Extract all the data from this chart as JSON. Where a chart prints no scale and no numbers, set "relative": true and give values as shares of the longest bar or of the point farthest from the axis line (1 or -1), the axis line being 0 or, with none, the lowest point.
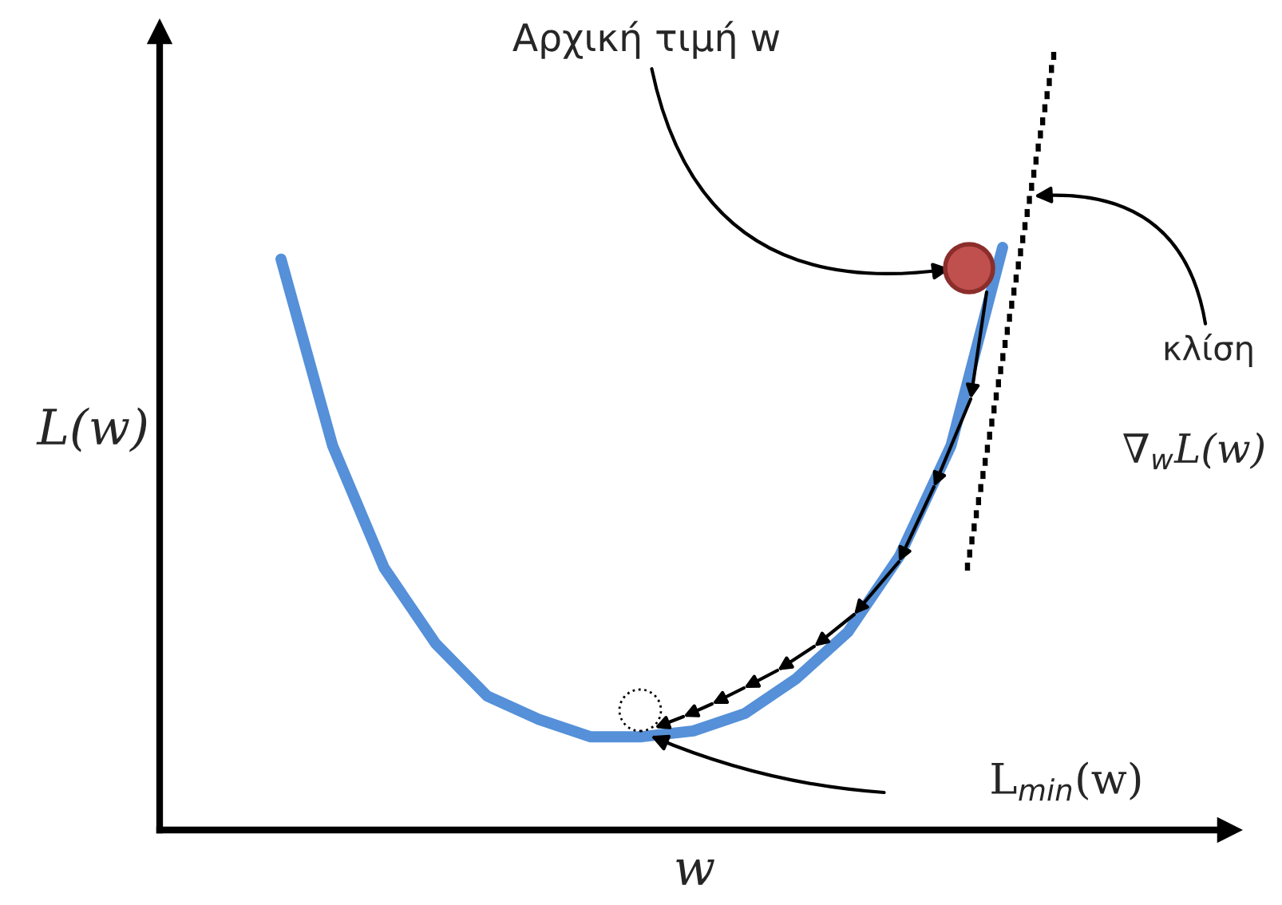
{
  "chart_data": {
    "type": "line",
    "relative": true,
    "xlabel": "w",
    "ylabel": "L(w)",
    "categories": [
      null,
      null,
      null,
      null,
      null,
      null,
      null,
      null,
      null,
      null,
      null,
      null,
      null,
      null,
      null
    ],
    "series": [
      {
        "color": "#5590d9",
        "values": [
          0.98,
          0.66,
          0.45,
          0.32,
          0.23,
          0.19,
          0.16,
          0.16,
          0.17,
          0.2,
          0.26,
          0.34,
          0.47,
          0.66,
          1
        ]
      }
    ],
    "marker": "none",
    "line_style": "solid",
    "annotations": [
      "Αρχική τιμή w",
      "κλίση",
      "∇$_{w}$L(w)",
      "L$_{min}$(w)"
    ]
  }
}
